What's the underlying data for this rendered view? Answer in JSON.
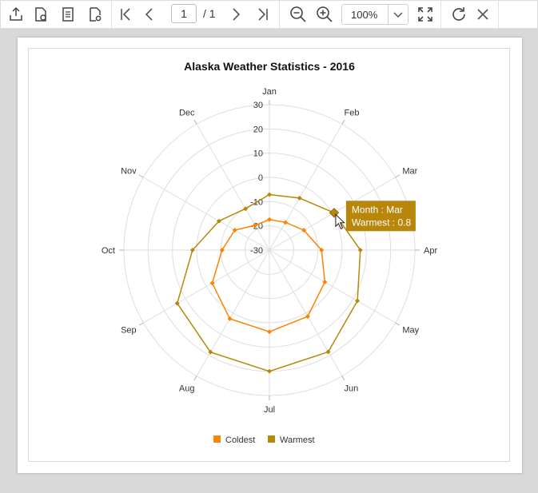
{
  "toolbar": {
    "page_current": "1",
    "page_total": "/ 1",
    "zoom": "100%",
    "buttons": [
      "export-icon",
      "print-setup-icon",
      "document-icon",
      "page-settings-icon",
      "first-page-icon",
      "previous-page-icon",
      "next-page-icon",
      "last-page-icon",
      "zoom-out-icon",
      "zoom-in-icon",
      "fit-to-page-icon",
      "refresh-icon",
      "close-icon"
    ]
  },
  "chart_data": {
    "type": "radar",
    "title": "Alaska Weather Statistics - 2016",
    "categories": [
      "Jan",
      "Feb",
      "Mar",
      "Apr",
      "May",
      "Jun",
      "Jul",
      "Aug",
      "Sep",
      "Oct",
      "Nov",
      "Dec"
    ],
    "series": [
      {
        "name": "Coldest",
        "color": "#ff8200",
        "values": [
          -17.4,
          -16.8,
          -13.6,
          -8.5,
          -3.6,
          1.6,
          3.7,
          2.7,
          -2.8,
          -10.5,
          -13.5,
          -18.2
        ]
      },
      {
        "name": "Warmest",
        "color": "#b8860b",
        "values": [
          -7.1,
          -5.2,
          0.8,
          7.5,
          11.9,
          18.5,
          20,
          18.6,
          13.9,
          1.7,
          -6,
          -10.3
        ]
      }
    ],
    "rlim": [
      -30,
      30
    ],
    "rticks": [
      "-30",
      "-20",
      "-10",
      "0",
      "10",
      "20",
      "30"
    ],
    "legend": [
      "Coldest",
      "Warmest"
    ],
    "legend_position": "bottom",
    "tooltip": {
      "line1": "Month : Mar",
      "line2": "Warmest : 0.8"
    }
  }
}
